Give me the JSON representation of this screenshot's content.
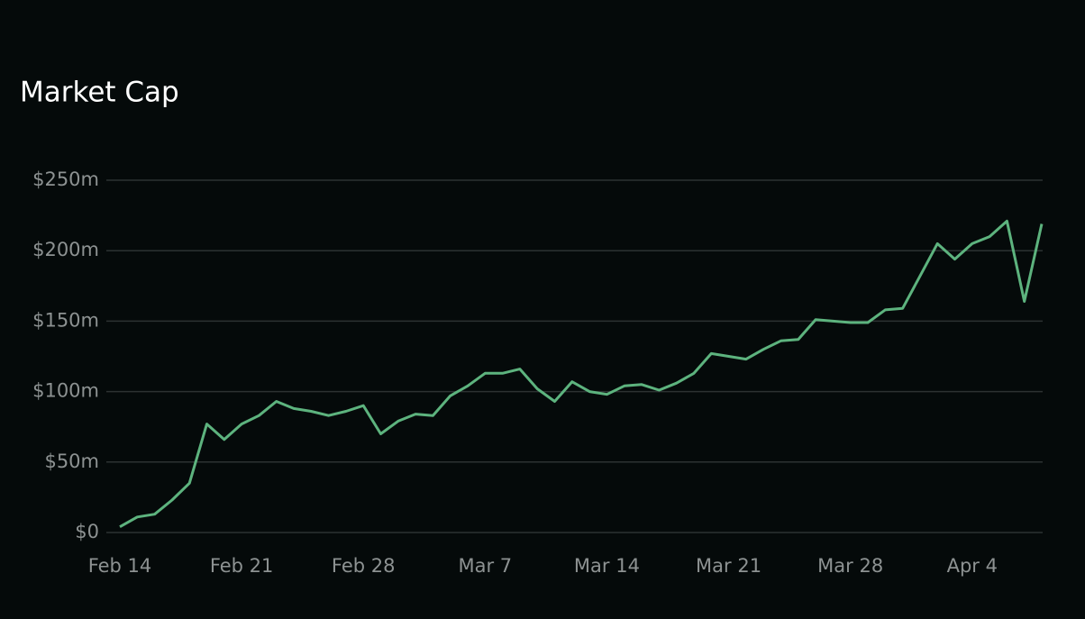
{
  "chart_data": {
    "type": "line",
    "title": "Market Cap",
    "categories": [
      "Feb 14",
      null,
      null,
      null,
      null,
      null,
      null,
      "Feb 21",
      null,
      null,
      null,
      null,
      null,
      null,
      "Feb 28",
      null,
      null,
      null,
      null,
      null,
      null,
      "Mar 7",
      null,
      null,
      null,
      null,
      null,
      null,
      "Mar 14",
      null,
      null,
      null,
      null,
      null,
      null,
      "Mar 21",
      null,
      null,
      null,
      null,
      null,
      null,
      "Mar 28",
      null,
      null,
      null,
      null,
      null,
      null,
      "Apr 4",
      null,
      null,
      null,
      null
    ],
    "series": [
      {
        "name": "Market Cap",
        "color": "#5db37e",
        "values": [
          4000000,
          11000000,
          13000000,
          23000000,
          35000000,
          77000000,
          66000000,
          77000000,
          83000000,
          93000000,
          88000000,
          86000000,
          83000000,
          86000000,
          90000000,
          70000000,
          79000000,
          84000000,
          83000000,
          97000000,
          104000000,
          113000000,
          113000000,
          116000000,
          102000000,
          93000000,
          107000000,
          100000000,
          98000000,
          104000000,
          105000000,
          101000000,
          106000000,
          113000000,
          127000000,
          125000000,
          123000000,
          130000000,
          136000000,
          137000000,
          151000000,
          150000000,
          149000000,
          149000000,
          158000000,
          159000000,
          182000000,
          205000000,
          194000000,
          205000000,
          210000000,
          221000000,
          164000000,
          219000000
        ]
      }
    ],
    "ylim": [
      0,
      250000000
    ],
    "yticks": [
      {
        "value": 0,
        "label": "$0"
      },
      {
        "value": 50000000,
        "label": "$50m"
      },
      {
        "value": 100000000,
        "label": "$100m"
      },
      {
        "value": 150000000,
        "label": "$150m"
      },
      {
        "value": 200000000,
        "label": "$200m"
      },
      {
        "value": 250000000,
        "label": "$250m"
      }
    ],
    "grid": true
  }
}
